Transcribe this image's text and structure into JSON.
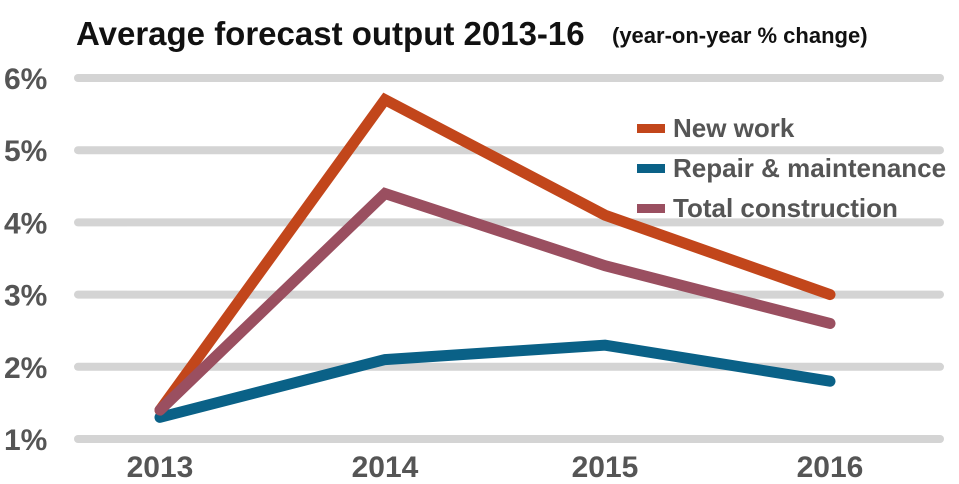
{
  "chart_data": {
    "type": "line",
    "title": "Average forecast output 2013-16",
    "subtitle": "(year-on-year % change)",
    "xlabel": "",
    "ylabel": "",
    "categories": [
      "2013",
      "2014",
      "2015",
      "2016"
    ],
    "ylim": [
      1,
      6
    ],
    "yticks": [
      "1%",
      "2%",
      "3%",
      "4%",
      "5%",
      "6%"
    ],
    "grid": true,
    "legend_position": "top-right",
    "series": [
      {
        "name": "New work",
        "color": "#c2461b",
        "values": [
          1.4,
          5.7,
          4.1,
          3.0
        ]
      },
      {
        "name": "Repair & maintenance",
        "color": "#0a6187",
        "values": [
          1.3,
          2.1,
          2.3,
          1.8
        ]
      },
      {
        "name": "Total construction",
        "color": "#9a4f60",
        "values": [
          1.4,
          4.4,
          3.4,
          2.6
        ]
      }
    ]
  }
}
